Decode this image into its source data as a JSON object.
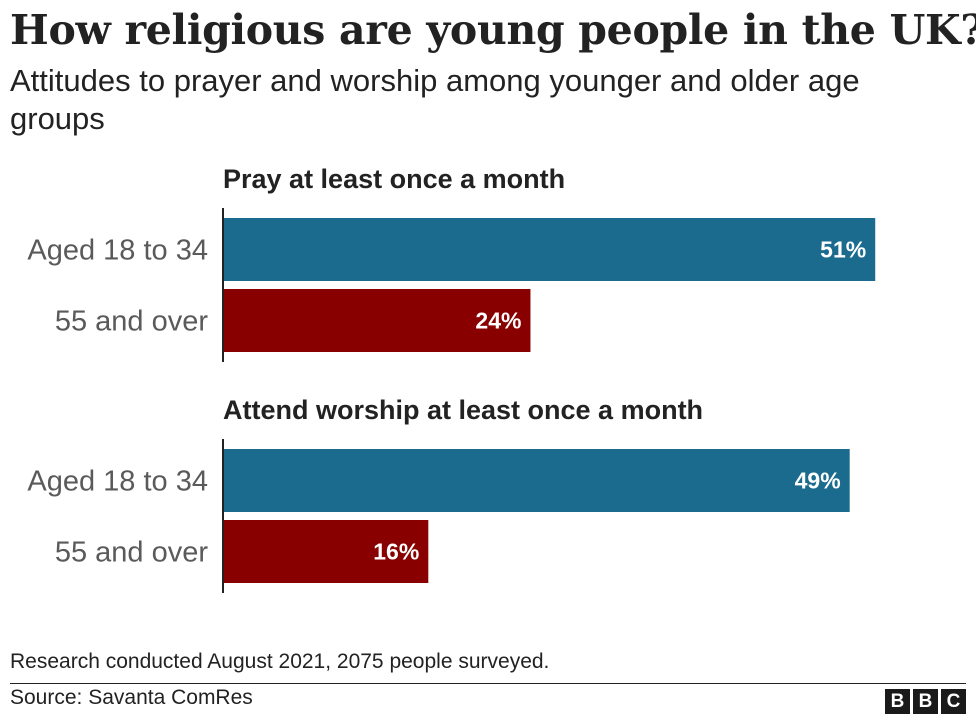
{
  "chart_data": {
    "type": "bar",
    "title": "How religious are young people in the UK?",
    "subtitle": "Attitudes to prayer and worship among younger and older age groups",
    "orientation": "horizontal",
    "xlim": [
      0,
      52
    ],
    "unit": "%",
    "grid": false,
    "panels": [
      {
        "title": "Pray at least once a month",
        "categories": [
          "Aged 18 to 34",
          "55 and over"
        ],
        "values": [
          51,
          24
        ],
        "labels": [
          "51%",
          "24%"
        ]
      },
      {
        "title": "Attend worship at least once a month",
        "categories": [
          "Aged 18 to 34",
          "55 and over"
        ],
        "values": [
          49,
          16
        ],
        "labels": [
          "49%",
          "16%"
        ]
      }
    ],
    "colors": [
      "#1b6b8f",
      "#880000"
    ]
  },
  "footer": {
    "note": "Research conducted August 2021, 2075 people surveyed.",
    "source": "Source: Savanta ComRes",
    "logo": [
      "B",
      "B",
      "C"
    ]
  }
}
